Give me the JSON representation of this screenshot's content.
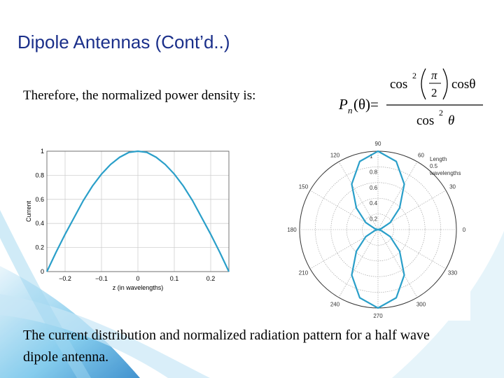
{
  "slide": {
    "title": "Dipole Antennas (Cont’d..)",
    "text": "Therefore, the normalized power density is:",
    "formula": {
      "lhs": "P",
      "lhs_sub": "n",
      "lhs_arg": "(θ)=",
      "num_cos": "cos",
      "num_sup": "2",
      "num_frac_top": "π",
      "num_frac_bottom": "2",
      "num_tail": "cosθ",
      "den_cos": "cos",
      "den_sup": "2",
      "den_tail": "θ"
    },
    "caption": [
      "The current distribution and normalized radiation pattern for a half wave",
      "dipole antenna."
    ]
  },
  "chart_data": [
    {
      "type": "line",
      "x": [
        -0.25,
        -0.225,
        -0.2,
        -0.175,
        -0.15,
        -0.125,
        -0.1,
        -0.075,
        -0.05,
        -0.025,
        0,
        0.025,
        0.05,
        0.075,
        0.1,
        0.125,
        0.15,
        0.175,
        0.2,
        0.225,
        0.25
      ],
      "values": [
        0,
        0.16,
        0.31,
        0.45,
        0.59,
        0.71,
        0.81,
        0.89,
        0.95,
        0.99,
        1,
        0.99,
        0.95,
        0.89,
        0.81,
        0.71,
        0.59,
        0.45,
        0.31,
        0.16,
        0
      ],
      "color": "#2a9fc9",
      "x_label": "z (in wavelengths)",
      "y_label": "Current",
      "xlim": [
        -0.25,
        0.25
      ],
      "xticks": [
        {
          "value": -0.2,
          "label": "−0.2"
        },
        {
          "value": -0.1,
          "label": "−0.1"
        },
        0,
        0.1,
        0.2
      ],
      "ylim": [
        0,
        1
      ],
      "yticks": [
        0,
        0.2,
        0.4,
        0.6,
        0.8,
        1
      ],
      "grid": true
    },
    {
      "type": "polar",
      "theta": [
        0,
        15,
        30,
        45,
        60,
        75,
        90,
        105,
        120,
        135,
        150,
        165,
        180,
        195,
        210,
        225,
        240,
        255,
        270,
        285,
        300,
        315,
        330,
        345
      ],
      "values": [
        0,
        0.04,
        0.18,
        0.39,
        0.67,
        0.9,
        1,
        0.9,
        0.67,
        0.39,
        0.18,
        0.04,
        0,
        0.04,
        0.18,
        0.39,
        0.67,
        0.9,
        1,
        0.9,
        0.67,
        0.39,
        0.18,
        0.04
      ],
      "color": "#2a9fc9",
      "rlim": [
        0,
        1
      ],
      "rticks": [
        0.2,
        0.4,
        0.6,
        0.8,
        1
      ],
      "thetaticks": [
        0,
        30,
        60,
        90,
        120,
        150,
        180,
        210,
        240,
        270,
        300,
        330
      ],
      "annotation": [
        "Length",
        "0.5",
        "wavelengths"
      ],
      "grid": true
    }
  ]
}
